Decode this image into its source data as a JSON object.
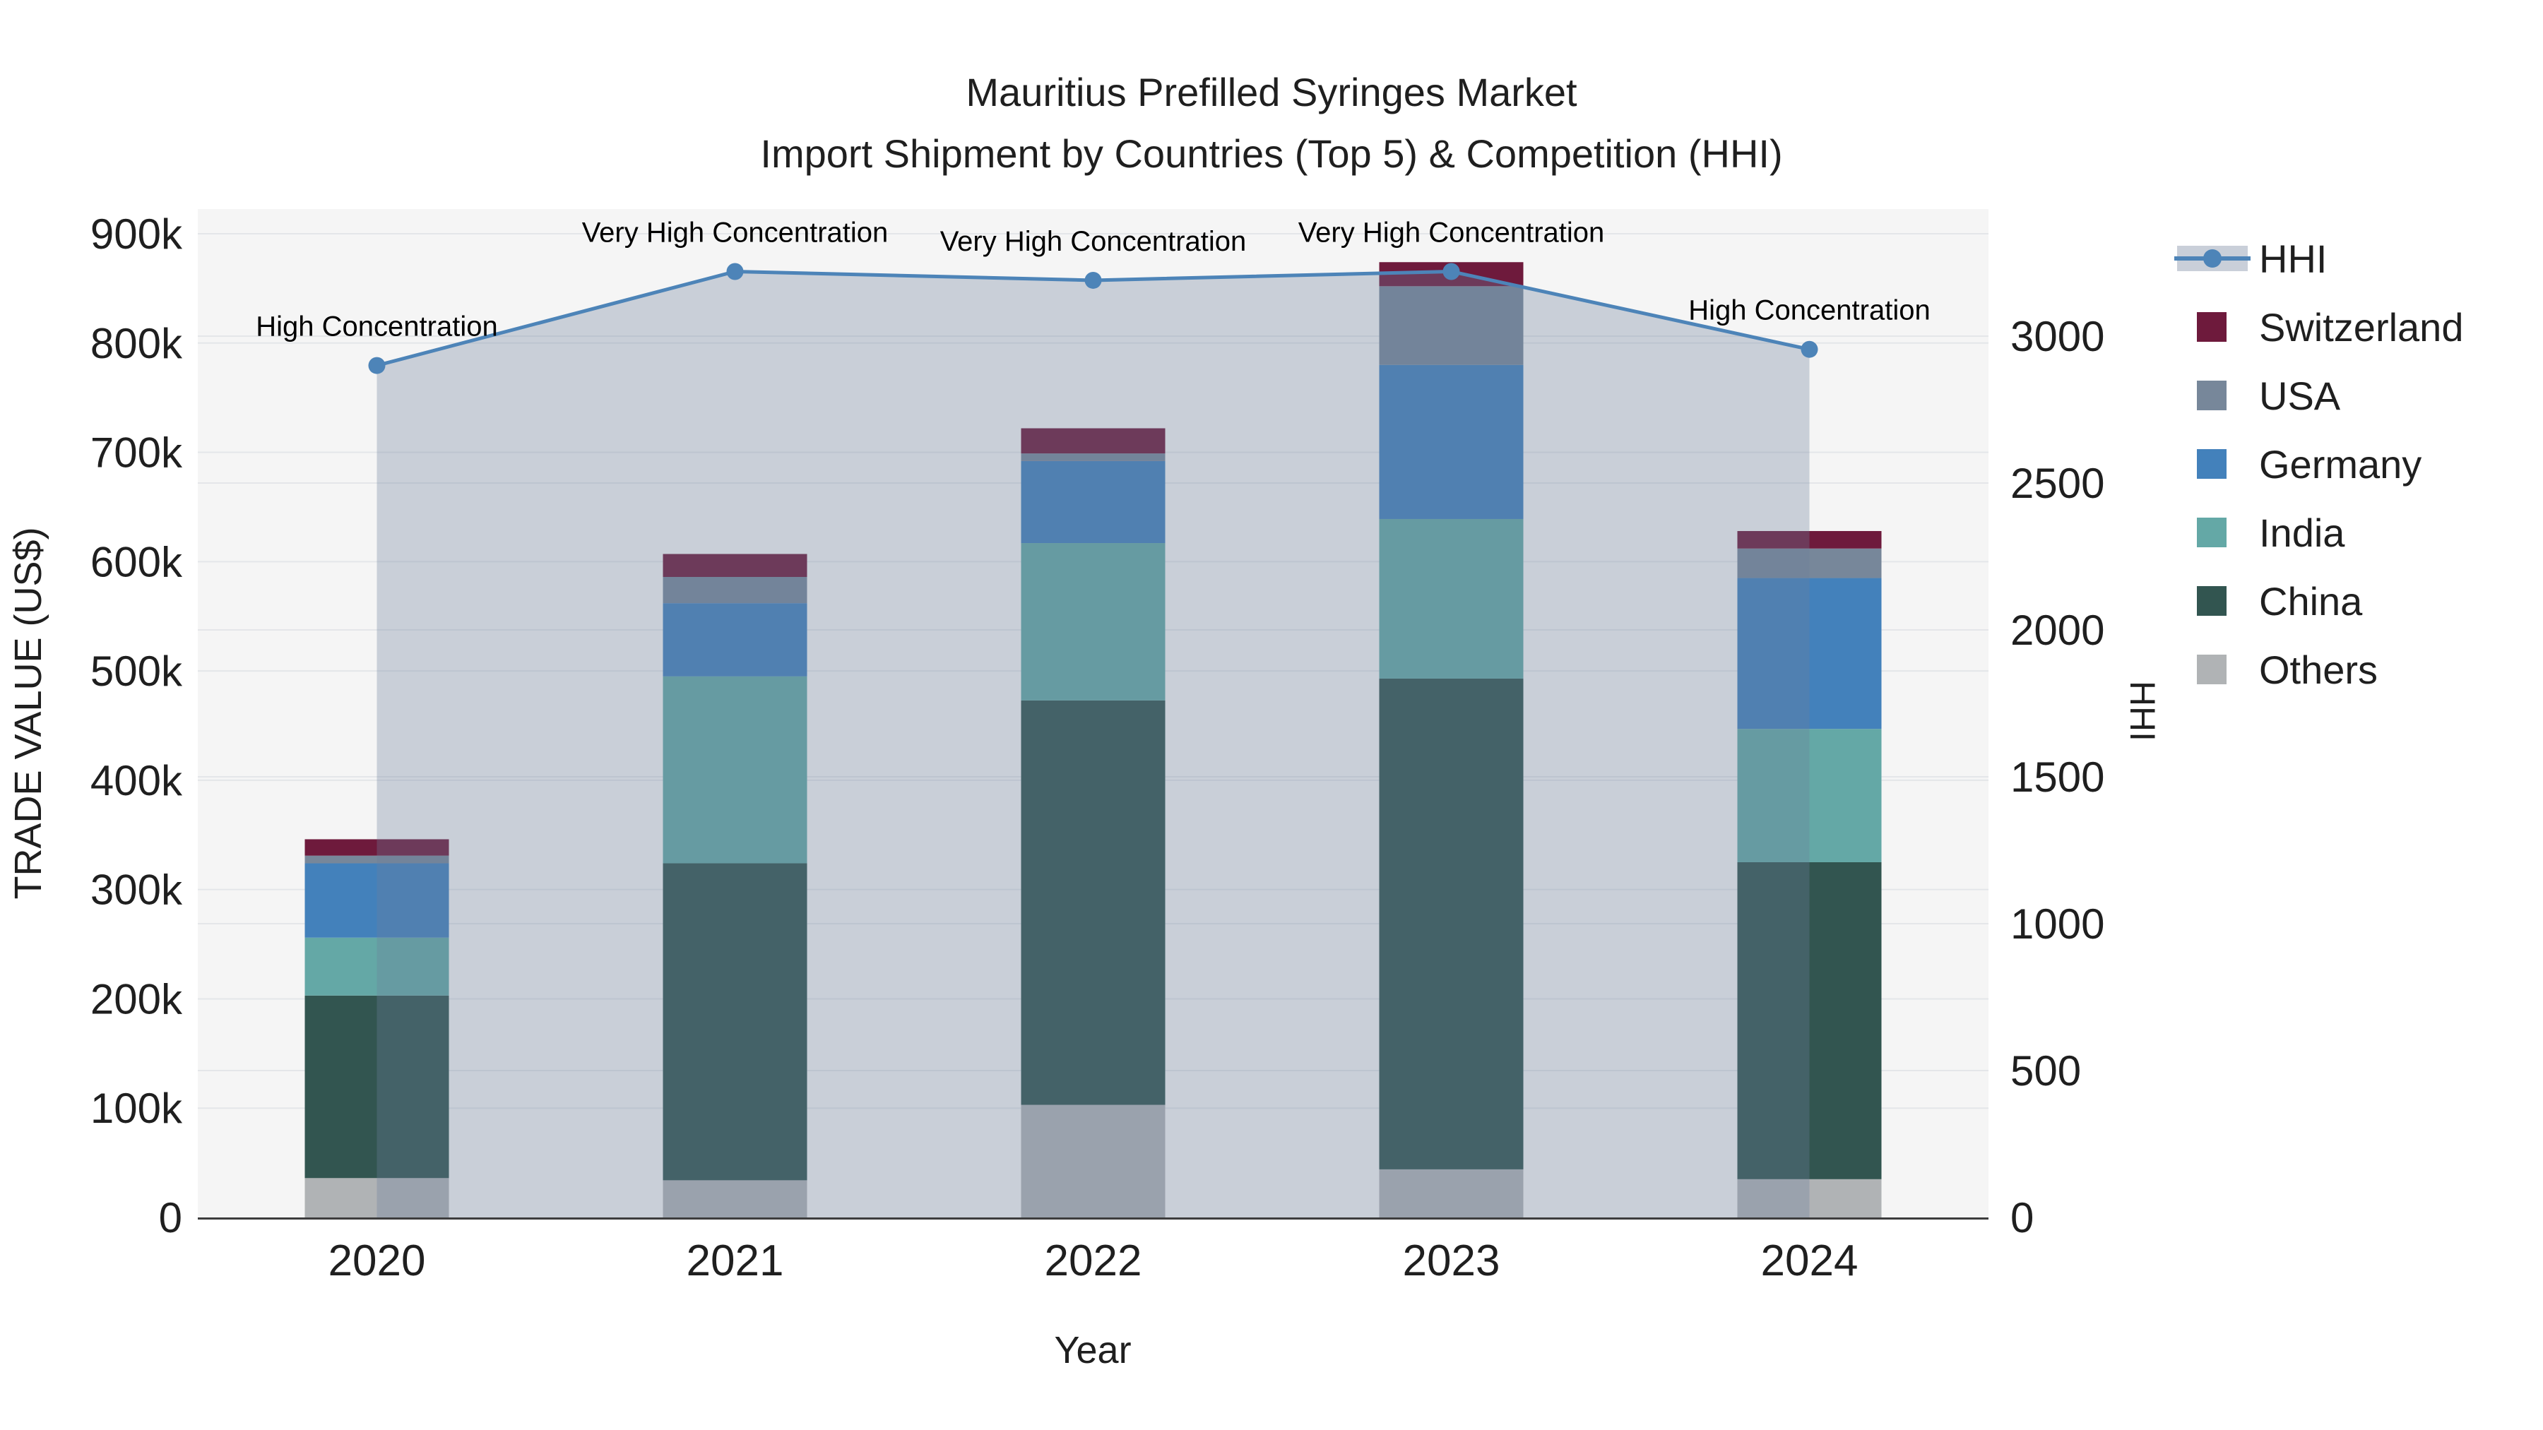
{
  "chart_data": {
    "type": "bar+line",
    "title": "Mauritius Prefilled Syringes Market",
    "subtitle": "Import Shipment by Countries (Top 5) & Competition (HHI)",
    "xlabel": "Year",
    "ylabel_left": "TRADE VALUE (US$)",
    "ylabel_right": "HHI",
    "categories": [
      "2020",
      "2021",
      "2022",
      "2023",
      "2024"
    ],
    "stack_order_bottom_to_top": [
      "Others",
      "China",
      "India",
      "Germany",
      "USA",
      "Switzerland"
    ],
    "series": [
      {
        "name": "Switzerland",
        "color": "#6e1a3c",
        "values": [
          15000,
          21000,
          23000,
          22000,
          16000
        ]
      },
      {
        "name": "USA",
        "color": "#77879a",
        "values": [
          7000,
          24000,
          7000,
          72000,
          27000
        ]
      },
      {
        "name": "Germany",
        "color": "#4381bb",
        "values": [
          68000,
          67000,
          75000,
          141000,
          138000
        ]
      },
      {
        "name": "India",
        "color": "#64a8a6",
        "values": [
          53000,
          171000,
          144000,
          146000,
          122000
        ]
      },
      {
        "name": "China",
        "color": "#325550",
        "values": [
          167000,
          290000,
          370000,
          449000,
          290000
        ]
      },
      {
        "name": "Others",
        "color": "#b0b3b5",
        "values": [
          36000,
          34000,
          103000,
          44000,
          35000
        ]
      }
    ],
    "bar_totals": [
      346000,
      607000,
      722000,
      874000,
      628000
    ],
    "hhi": {
      "name": "HHI",
      "line_color": "#4d84b8",
      "area_fill": "rgba(108,126,157,0.32)",
      "legend_band_color": "#c9cfd9",
      "values": [
        2900,
        3220,
        3190,
        3220,
        2955
      ]
    },
    "annotations": [
      {
        "category": "2020",
        "text": "High Concentration"
      },
      {
        "category": "2021",
        "text": "Very High Concentration"
      },
      {
        "category": "2022",
        "text": "Very High Concentration"
      },
      {
        "category": "2023",
        "text": "Very High Concentration"
      },
      {
        "category": "2024",
        "text": "High Concentration"
      }
    ],
    "left_axis": {
      "min": 0,
      "max": 900000,
      "tick_step": 100000,
      "tick_labels": [
        "0",
        "100k",
        "200k",
        "300k",
        "400k",
        "500k",
        "600k",
        "700k",
        "800k",
        "900k"
      ]
    },
    "right_axis": {
      "min": 0,
      "max": 3000,
      "tick_step": 500,
      "tick_labels": [
        "0",
        "500",
        "1000",
        "1500",
        "2000",
        "2500",
        "3000"
      ]
    },
    "legend_entries": [
      "HHI",
      "Switzerland",
      "USA",
      "Germany",
      "India",
      "China",
      "Others"
    ],
    "legend_position": "right",
    "grid": true,
    "plot_bg": "#f5f5f5",
    "grid_color": "#e4e6e9",
    "axis_line_color": "#3d3d3d"
  }
}
